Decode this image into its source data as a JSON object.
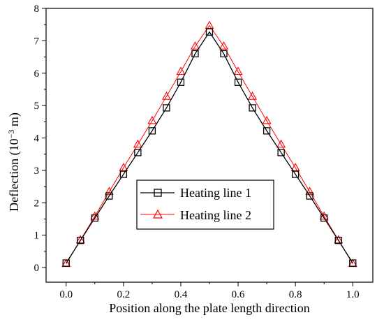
{
  "chart_data": {
    "type": "line",
    "title": "",
    "xlabel": "Position along the plate length direction",
    "ylabel_main": "Deflection (10",
    "ylabel_sup": "−3",
    "ylabel_tail": " m)",
    "xlim": [
      -0.07,
      1.07
    ],
    "ylim": [
      -0.45,
      8
    ],
    "x_ticks": [
      0.0,
      0.2,
      0.4,
      0.6,
      0.8,
      1.0
    ],
    "x_tick_labels": [
      "0.0",
      "0.2",
      "0.4",
      "0.6",
      "0.8",
      "1.0"
    ],
    "y_ticks": [
      0,
      1,
      2,
      3,
      4,
      5,
      6,
      7,
      8
    ],
    "y_tick_labels": [
      "0",
      "1",
      "2",
      "3",
      "4",
      "5",
      "6",
      "7",
      "8"
    ],
    "x": [
      0.0,
      0.05,
      0.1,
      0.15,
      0.2,
      0.25,
      0.3,
      0.35,
      0.4,
      0.45,
      0.5,
      0.55,
      0.6,
      0.65,
      0.7,
      0.75,
      0.8,
      0.85,
      0.9,
      0.95,
      1.0
    ],
    "series": [
      {
        "name": "Heating line 1",
        "color": "#000000",
        "marker": "square",
        "values": [
          0.14,
          0.84,
          1.53,
          2.21,
          2.88,
          3.55,
          4.22,
          4.93,
          5.72,
          6.6,
          7.27,
          6.6,
          5.72,
          4.93,
          4.22,
          3.55,
          2.88,
          2.21,
          1.53,
          0.84,
          0.14
        ]
      },
      {
        "name": "Heating line 2",
        "color": "#ff0000",
        "marker": "triangle",
        "values": [
          0.12,
          0.85,
          1.58,
          2.34,
          3.08,
          3.8,
          4.53,
          5.28,
          6.05,
          6.83,
          7.47,
          6.83,
          6.05,
          5.28,
          4.53,
          3.8,
          3.08,
          2.34,
          1.58,
          0.85,
          0.12
        ]
      }
    ],
    "grid": false,
    "legend_position": "center-right"
  }
}
